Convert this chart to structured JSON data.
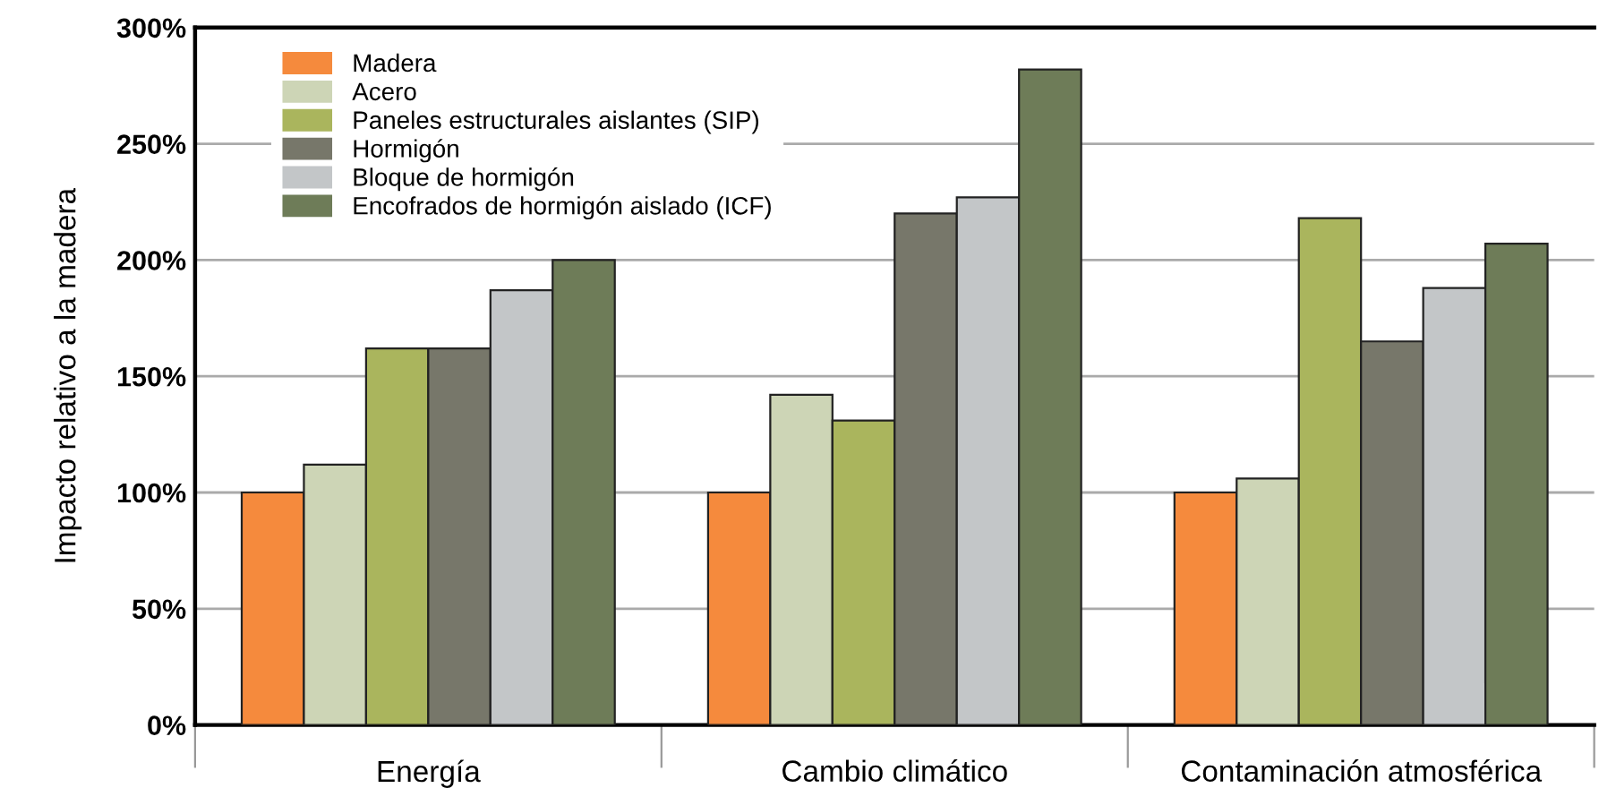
{
  "chart_data": {
    "type": "bar",
    "ylabel": "Impacto relativo a la madera",
    "categories": [
      "Energía",
      "Cambio climático",
      "Contaminación atmosférica"
    ],
    "series": [
      {
        "name": "Madera",
        "color": "#f58a3d",
        "values": [
          100,
          100,
          100
        ]
      },
      {
        "name": "Acero",
        "color": "#cdd5b6",
        "values": [
          112,
          142,
          106
        ]
      },
      {
        "name": "Paneles estructurales aislantes (SIP)",
        "color": "#aab55d",
        "values": [
          162,
          131,
          218
        ]
      },
      {
        "name": "Hormigón",
        "color": "#77776a",
        "values": [
          162,
          220,
          165
        ]
      },
      {
        "name": "Bloque de hormigón",
        "color": "#c3c6c8",
        "values": [
          187,
          227,
          188
        ]
      },
      {
        "name": "Encofrados de hormigón aislado (ICF)",
        "color": "#6e7c58",
        "values": [
          200,
          282,
          207
        ]
      }
    ],
    "ylim": [
      0,
      300
    ],
    "yticks": [
      {
        "value": 0,
        "label": "0%"
      },
      {
        "value": 50,
        "label": "50%"
      },
      {
        "value": 100,
        "label": "100%"
      },
      {
        "value": 150,
        "label": "150%"
      },
      {
        "value": 200,
        "label": "200%"
      },
      {
        "value": 250,
        "label": "250%"
      },
      {
        "value": 300,
        "label": "300%"
      }
    ],
    "grid": "y",
    "legend": "top left"
  }
}
